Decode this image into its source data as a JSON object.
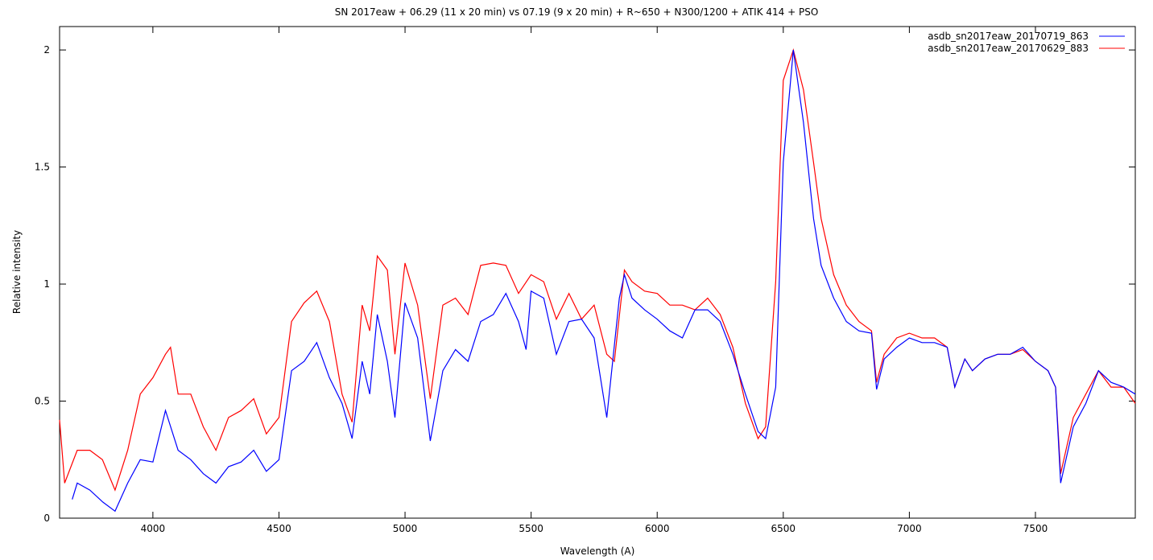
{
  "chart_data": {
    "type": "line",
    "title": "SN 2017eaw + 06.29  (11 x 20 min) vs 07.19 (9 x 20 min) + R~650 + N300/1200 + ATIK 414 + PSO",
    "xlabel": "Wavelength (A)",
    "ylabel": "Relative intensity",
    "xlim": [
      3630,
      7896
    ],
    "ylim": [
      0,
      2.1
    ],
    "xticks": [
      4000,
      4500,
      5000,
      5500,
      6000,
      6500,
      7000,
      7500
    ],
    "yticks": [
      0,
      0.5,
      1,
      1.5,
      2
    ],
    "ytick_labels": [
      "0",
      "0.5",
      "1",
      "1.5",
      "2"
    ],
    "legend_position": "top-right",
    "grid": false,
    "series": [
      {
        "name": "asdb_sn2017eaw_20170719_863",
        "color": "#0000ff",
        "x": [
          3680,
          3700,
          3750,
          3800,
          3850,
          3900,
          3950,
          4000,
          4050,
          4100,
          4150,
          4200,
          4250,
          4300,
          4350,
          4400,
          4450,
          4500,
          4550,
          4600,
          4650,
          4700,
          4750,
          4790,
          4830,
          4860,
          4890,
          4930,
          4960,
          5000,
          5050,
          5100,
          5150,
          5200,
          5250,
          5300,
          5350,
          5400,
          5450,
          5480,
          5500,
          5550,
          5600,
          5650,
          5700,
          5750,
          5800,
          5850,
          5870,
          5900,
          5950,
          6000,
          6050,
          6100,
          6150,
          6200,
          6250,
          6300,
          6350,
          6400,
          6430,
          6470,
          6500,
          6540,
          6580,
          6620,
          6650,
          6700,
          6750,
          6800,
          6850,
          6870,
          6900,
          6950,
          7000,
          7050,
          7100,
          7150,
          7180,
          7220,
          7250,
          7300,
          7350,
          7400,
          7450,
          7500,
          7550,
          7580,
          7600,
          7650,
          7700,
          7750,
          7800,
          7850,
          7896
        ],
        "y": [
          0.08,
          0.15,
          0.12,
          0.07,
          0.03,
          0.15,
          0.25,
          0.24,
          0.46,
          0.29,
          0.25,
          0.19,
          0.15,
          0.22,
          0.24,
          0.29,
          0.2,
          0.25,
          0.63,
          0.67,
          0.75,
          0.6,
          0.49,
          0.34,
          0.67,
          0.53,
          0.87,
          0.67,
          0.43,
          0.92,
          0.77,
          0.33,
          0.63,
          0.72,
          0.67,
          0.84,
          0.87,
          0.96,
          0.84,
          0.72,
          0.97,
          0.94,
          0.7,
          0.84,
          0.85,
          0.77,
          0.43,
          0.94,
          1.04,
          0.94,
          0.89,
          0.85,
          0.8,
          0.77,
          0.89,
          0.89,
          0.84,
          0.7,
          0.53,
          0.37,
          0.34,
          0.56,
          1.52,
          2.0,
          1.69,
          1.28,
          1.08,
          0.94,
          0.84,
          0.8,
          0.79,
          0.55,
          0.68,
          0.73,
          0.77,
          0.75,
          0.75,
          0.73,
          0.56,
          0.68,
          0.63,
          0.68,
          0.7,
          0.7,
          0.73,
          0.67,
          0.63,
          0.56,
          0.15,
          0.39,
          0.49,
          0.63,
          0.58,
          0.56,
          0.53
        ]
      },
      {
        "name": "asdb_sn2017eaw_20170629_883",
        "color": "#ff0000",
        "x": [
          3630,
          3650,
          3700,
          3750,
          3800,
          3850,
          3900,
          3950,
          4000,
          4050,
          4070,
          4100,
          4150,
          4200,
          4250,
          4300,
          4350,
          4400,
          4450,
          4500,
          4550,
          4600,
          4650,
          4700,
          4750,
          4790,
          4830,
          4860,
          4890,
          4930,
          4960,
          5000,
          5050,
          5100,
          5150,
          5200,
          5250,
          5300,
          5350,
          5400,
          5450,
          5500,
          5550,
          5600,
          5650,
          5700,
          5750,
          5800,
          5830,
          5870,
          5900,
          5950,
          6000,
          6050,
          6100,
          6150,
          6200,
          6250,
          6300,
          6350,
          6400,
          6430,
          6470,
          6500,
          6540,
          6580,
          6620,
          6650,
          6700,
          6750,
          6800,
          6850,
          6870,
          6900,
          6950,
          7000,
          7050,
          7100,
          7150,
          7180,
          7220,
          7250,
          7300,
          7350,
          7400,
          7450,
          7500,
          7550,
          7580,
          7600,
          7650,
          7700,
          7750,
          7800,
          7850,
          7896
        ],
        "y": [
          0.42,
          0.15,
          0.29,
          0.29,
          0.25,
          0.12,
          0.29,
          0.53,
          0.6,
          0.7,
          0.73,
          0.53,
          0.53,
          0.39,
          0.29,
          0.43,
          0.46,
          0.51,
          0.36,
          0.43,
          0.84,
          0.92,
          0.97,
          0.84,
          0.53,
          0.41,
          0.91,
          0.8,
          1.12,
          1.06,
          0.7,
          1.09,
          0.91,
          0.51,
          0.91,
          0.94,
          0.87,
          1.08,
          1.09,
          1.08,
          0.96,
          1.04,
          1.01,
          0.85,
          0.96,
          0.85,
          0.91,
          0.7,
          0.67,
          1.06,
          1.01,
          0.97,
          0.96,
          0.91,
          0.91,
          0.89,
          0.94,
          0.87,
          0.73,
          0.49,
          0.34,
          0.39,
          1.01,
          1.87,
          2.0,
          1.83,
          1.52,
          1.28,
          1.04,
          0.91,
          0.84,
          0.8,
          0.58,
          0.7,
          0.77,
          0.79,
          0.77,
          0.77,
          0.73,
          0.56,
          0.68,
          0.63,
          0.68,
          0.7,
          0.7,
          0.72,
          0.67,
          0.63,
          0.56,
          0.19,
          0.43,
          0.53,
          0.63,
          0.56,
          0.56,
          0.49
        ]
      }
    ]
  }
}
